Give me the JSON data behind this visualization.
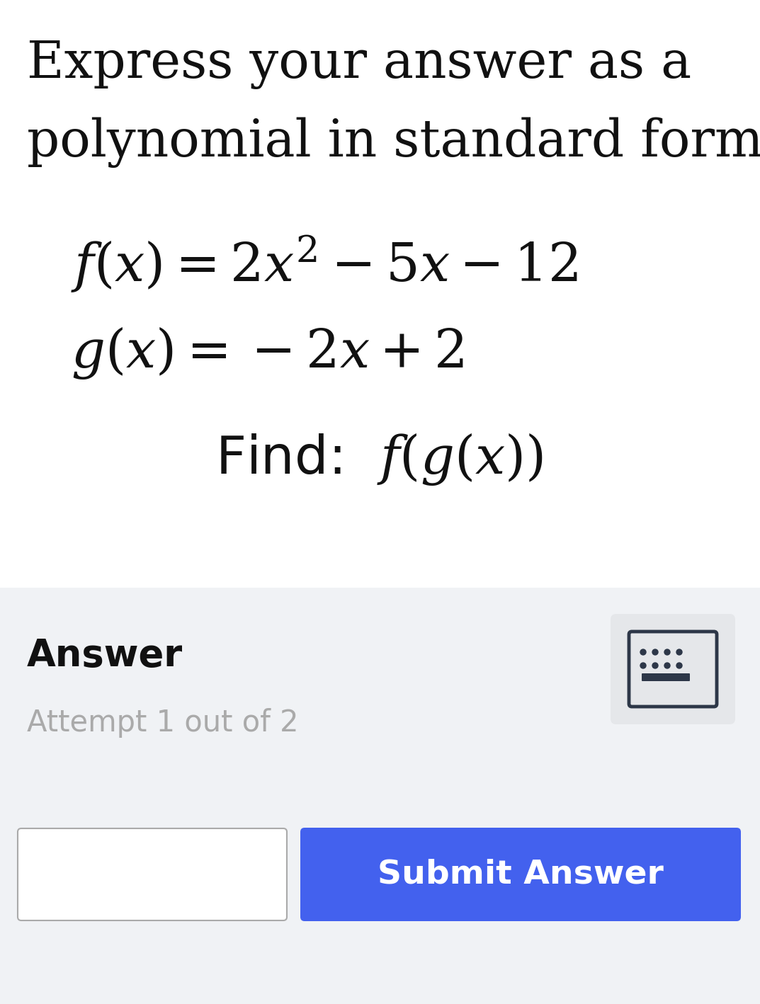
{
  "background_color": "#ffffff",
  "title_line1": "Express your answer as a",
  "title_line2": "polynomial in standard form.",
  "title_fontsize": 52,
  "title_color": "#111111",
  "fx_label": "$f(x) = 2x^2 - 5x - 12$",
  "gx_label": "$g(x) = -2x + 2$",
  "equation_fontsize": 54,
  "equation_color": "#111111",
  "find_text": "Find:  $f(g(x))$",
  "find_fontsize": 54,
  "find_color": "#111111",
  "answer_label": "Answer",
  "answer_fontsize": 38,
  "answer_color": "#111111",
  "attempt_label": "Attempt 1 out of 2",
  "attempt_fontsize": 30,
  "attempt_color": "#aaaaaa",
  "submit_text": "Submit Answer",
  "submit_fontsize": 34,
  "submit_bg": "#4361ee",
  "submit_text_color": "#ffffff",
  "answer_section_bg": "#f0f2f5",
  "input_box_color": "#ffffff",
  "input_box_border": "#aaaaaa",
  "keyboard_icon_bg": "#e5e7ea",
  "keyboard_icon_border": "#2d3748",
  "keyboard_icon_color": "#2d3748"
}
